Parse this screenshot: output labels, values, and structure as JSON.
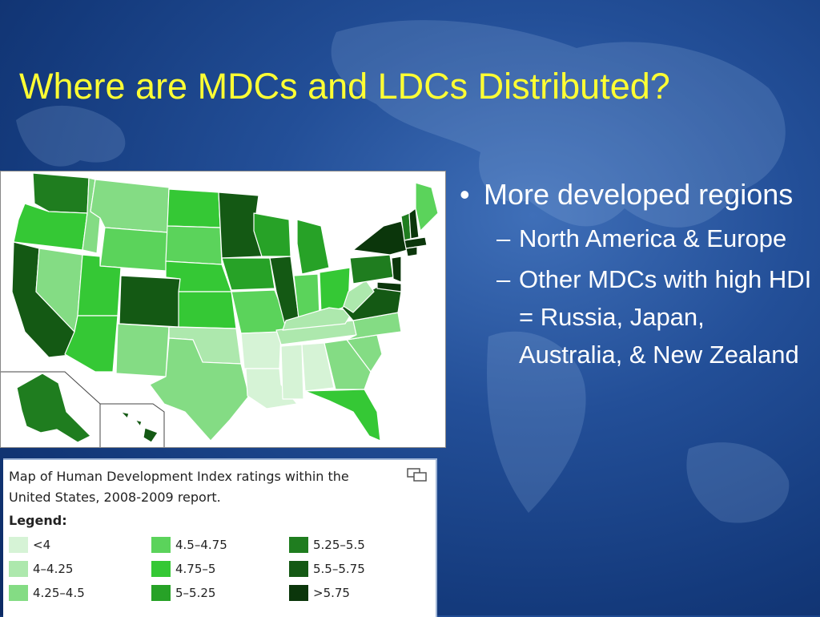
{
  "slide": {
    "title": "Where are MDCs and LDCs Distributed?"
  },
  "bullets": [
    {
      "marker": "•",
      "text": "More developed regions",
      "subs": [
        {
          "marker": "–",
          "text": "North America & Europe"
        },
        {
          "marker": "–",
          "text": "Other MDCs with high HDI = Russia, Japan, Australia, & New Zealand"
        }
      ]
    }
  ],
  "map_caption": {
    "text": "Map of Human Development Index ratings within the United States, 2008-2009 report.",
    "legend_title": "Legend:",
    "legend": [
      {
        "label": "<4",
        "color": "#d6f3d6"
      },
      {
        "label": "4–4.25",
        "color": "#ade8ad"
      },
      {
        "label": "4.25–4.5",
        "color": "#84dc84"
      },
      {
        "label": "4.5–4.75",
        "color": "#5bd35b"
      },
      {
        "label": "4.75–5",
        "color": "#35c835"
      },
      {
        "label": "5–5.25",
        "color": "#27a227"
      },
      {
        "label": "5.25–5.5",
        "color": "#1f7d1f"
      },
      {
        "label": "5.5–5.75",
        "color": "#145914"
      },
      {
        "label": ">5.75",
        "color": "#0b360b"
      }
    ]
  },
  "colors": {
    "title": "#ffff33",
    "background": "#1a4388"
  }
}
